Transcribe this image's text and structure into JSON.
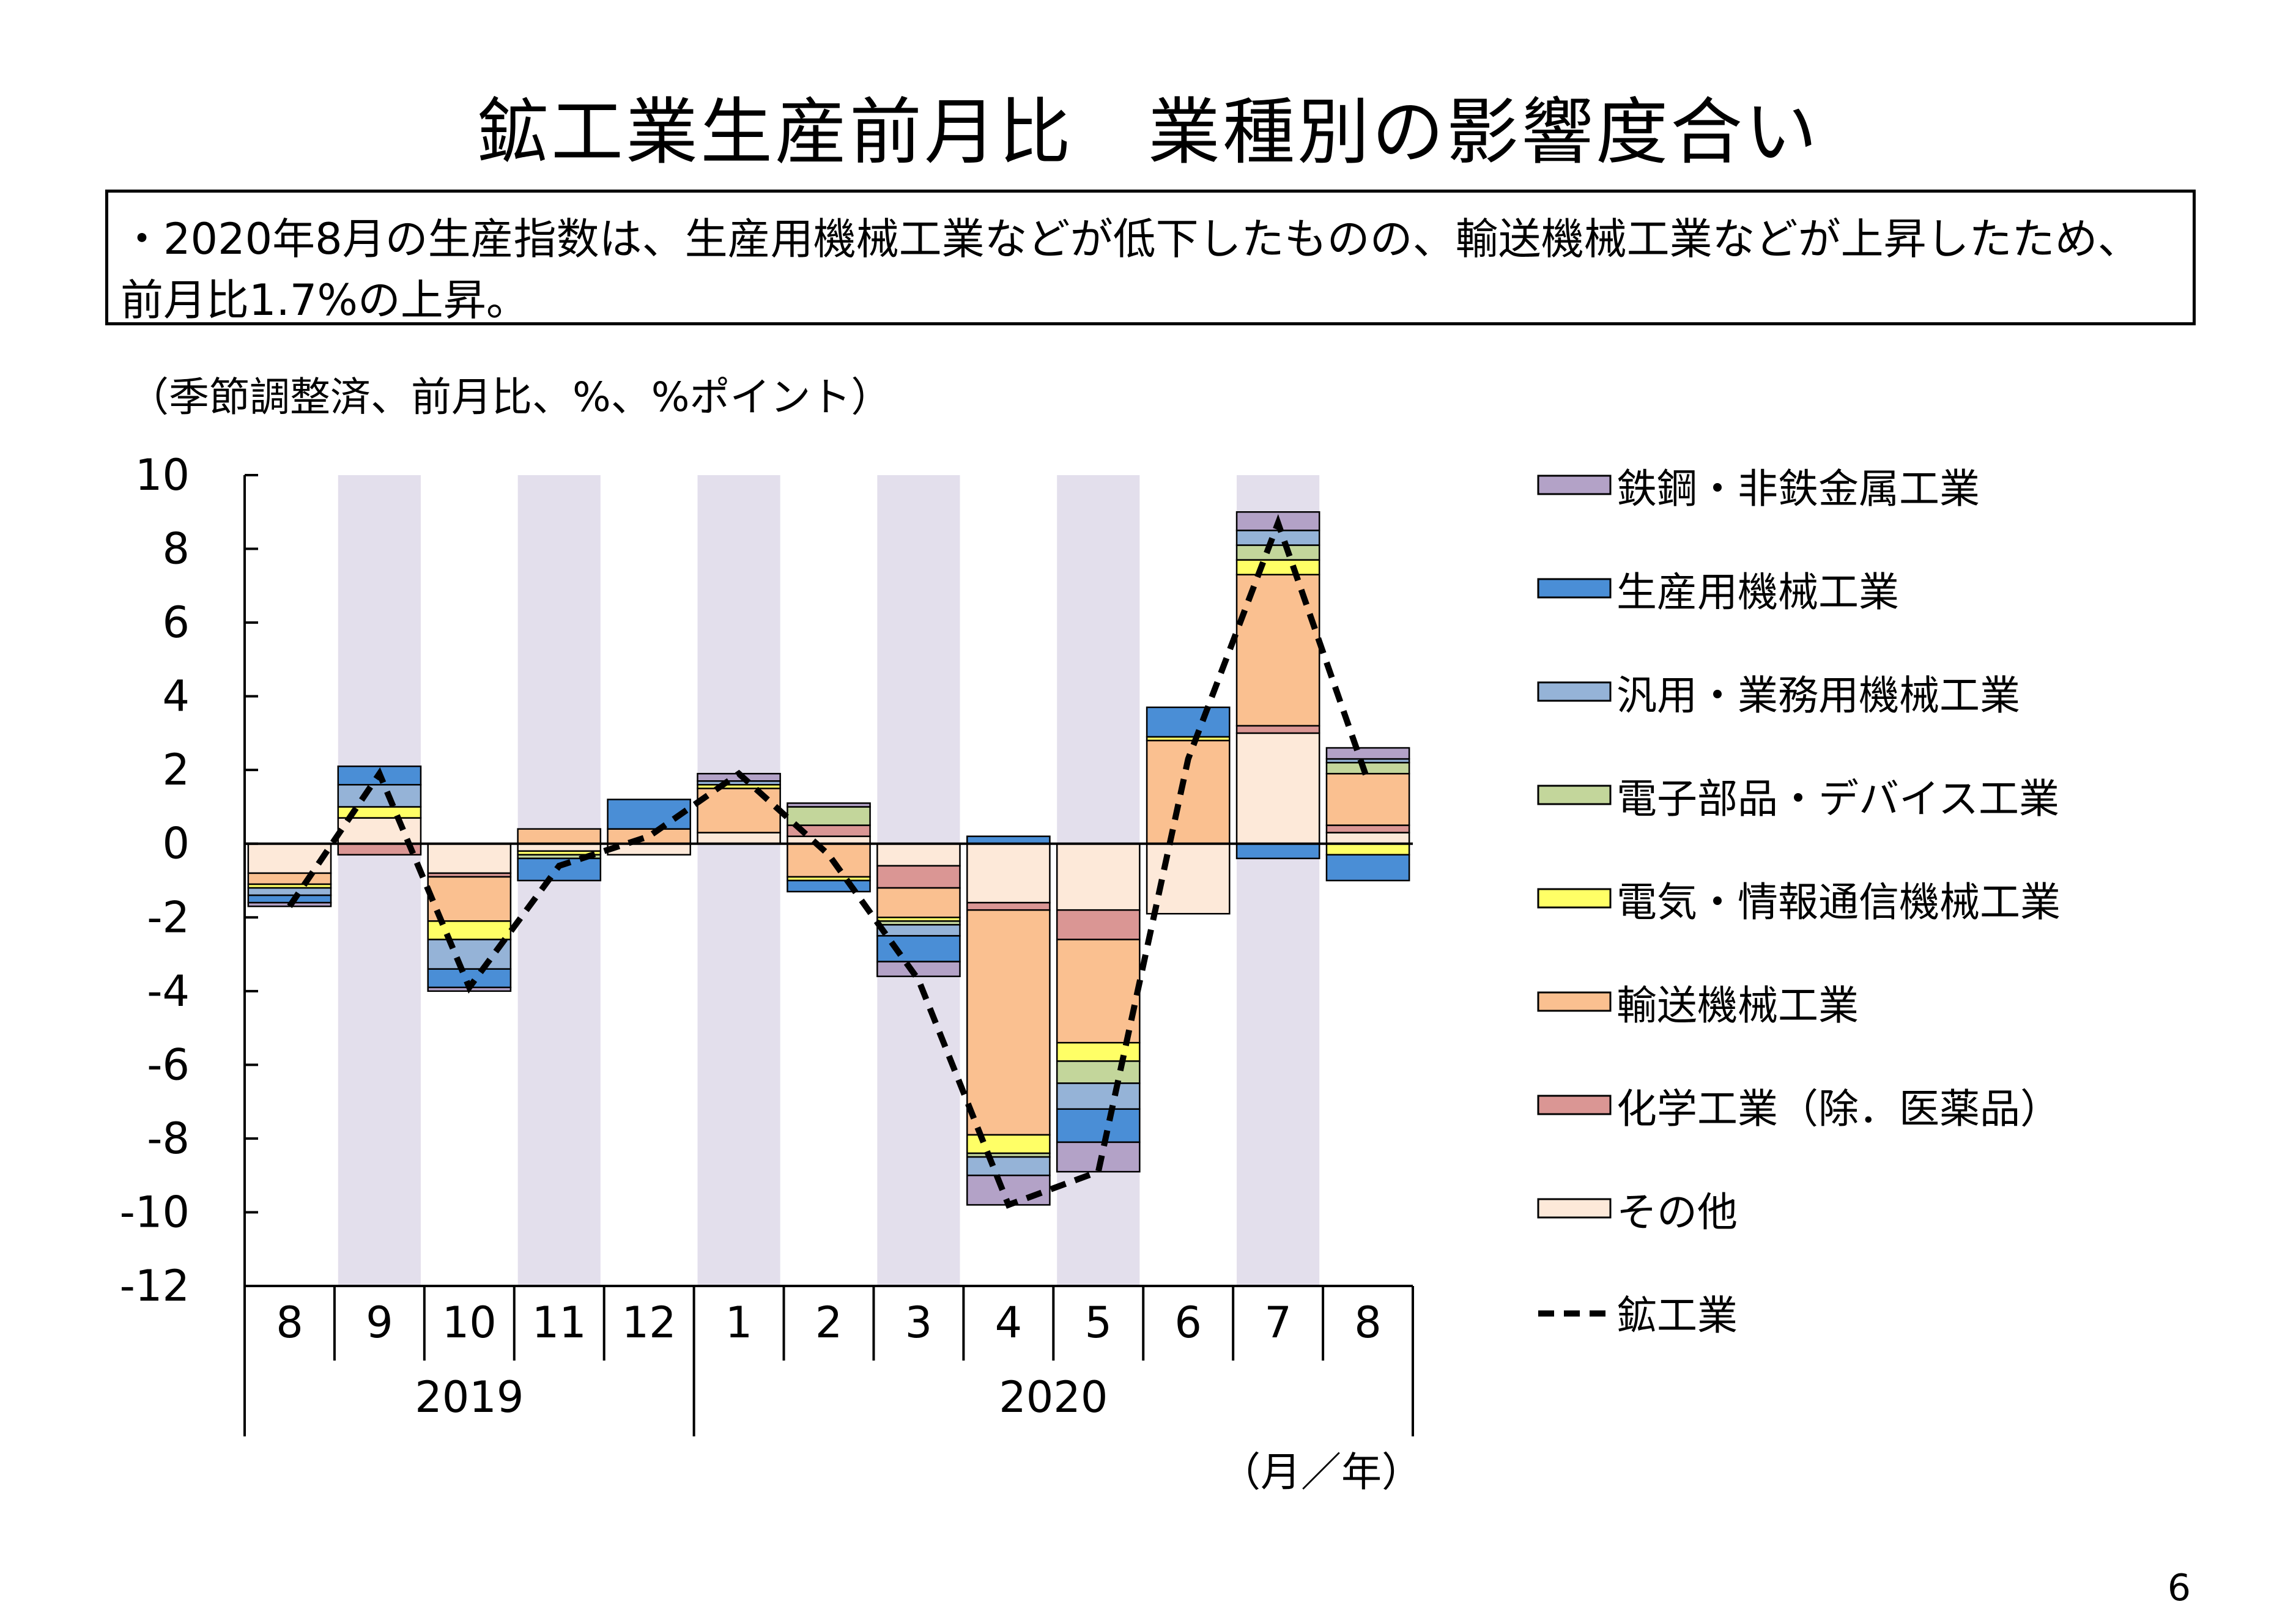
{
  "title": "鉱工業生産前月比　業種別の影響度合い",
  "summary": "・2020年8月の生産指数は、生産用機械工業などが低下したものの、輸送機械工業などが上昇したため、前月比1.7%の上昇。",
  "page_number": "6",
  "colors": {
    "shade": "#e3dfec",
    "鉄鋼・非鉄金属工業": "#b3a2c7",
    "生産用機械工業": "#4a8ed6",
    "汎用・業務用機械工業": "#95b3d7",
    "電子部品・デバイス工業": "#c3d69b",
    "電気・情報通信機械工業": "#ffff66",
    "輸送機械工業": "#fac090",
    "化学工業（除．医薬品）": "#da9694",
    "その他": "#fde9d9"
  },
  "chart_data": {
    "type": "bar",
    "stacked": true,
    "unit_label": "（季節調整済、前月比、%、%ポイント）",
    "x_unit_label": "（月／年）",
    "ylim": [
      -12,
      10
    ],
    "yticks": [
      "10",
      "8",
      "6",
      "4",
      "2",
      "0",
      "-2",
      "-4",
      "-6",
      "-8",
      "-10",
      "-12"
    ],
    "categories": [
      "8",
      "9",
      "10",
      "11",
      "12",
      "1",
      "2",
      "3",
      "4",
      "5",
      "6",
      "7",
      "8"
    ],
    "year_groups": [
      {
        "label": "2019",
        "from": 0,
        "to": 4
      },
      {
        "label": "2020",
        "from": 5,
        "to": 12
      }
    ],
    "shaded_categories": [
      1,
      3,
      5,
      7,
      9,
      11
    ],
    "series": [
      {
        "name": "その他",
        "values": [
          -0.8,
          0.7,
          -0.8,
          -0.2,
          -0.3,
          0.3,
          0.2,
          -0.6,
          -1.6,
          -1.8,
          -1.9,
          3.0,
          0.3
        ]
      },
      {
        "name": "化学工業（除．医薬品）",
        "values": [
          0.0,
          -0.3,
          -0.1,
          0.0,
          0.0,
          0.0,
          0.3,
          -0.6,
          -0.2,
          -0.8,
          0.0,
          0.2,
          0.2
        ]
      },
      {
        "name": "輸送機械工業",
        "values": [
          -0.3,
          0.0,
          -1.2,
          0.4,
          0.4,
          1.2,
          -0.9,
          -0.8,
          -6.1,
          -2.8,
          2.8,
          4.1,
          1.4
        ]
      },
      {
        "name": "電気・情報通信機械工業",
        "values": [
          -0.1,
          0.3,
          -0.5,
          -0.1,
          0.0,
          0.1,
          -0.1,
          -0.1,
          -0.5,
          -0.5,
          0.1,
          0.4,
          -0.3
        ]
      },
      {
        "name": "電子部品・デバイス工業",
        "values": [
          0.0,
          0.0,
          0.0,
          -0.1,
          0.0,
          0.0,
          0.5,
          -0.1,
          -0.1,
          -0.6,
          0.0,
          0.4,
          0.3
        ]
      },
      {
        "name": "汎用・業務用機械工業",
        "values": [
          -0.2,
          0.6,
          -0.8,
          0.0,
          0.0,
          0.1,
          0.0,
          -0.3,
          -0.5,
          -0.7,
          0.0,
          0.4,
          0.1
        ]
      },
      {
        "name": "生産用機械工業",
        "values": [
          -0.2,
          0.5,
          -0.5,
          -0.6,
          0.8,
          0.0,
          -0.3,
          -0.7,
          0.2,
          -0.9,
          0.8,
          -0.4,
          -0.7
        ]
      },
      {
        "name": "鉄鋼・非鉄金属工業",
        "values": [
          -0.1,
          0.0,
          -0.1,
          0.0,
          0.0,
          0.2,
          0.1,
          -0.4,
          -0.8,
          -0.8,
          0.0,
          0.5,
          0.3
        ]
      }
    ],
    "line": {
      "name": "鉱工業",
      "values": [
        -1.7,
        1.9,
        -3.9,
        -0.6,
        0.2,
        1.9,
        -0.3,
        -3.7,
        -9.8,
        -8.9,
        2.3,
        8.7,
        1.7
      ]
    },
    "legend": {
      "position": "right",
      "entries": [
        "鉄鋼・非鉄金属工業",
        "生産用機械工業",
        "汎用・業務用機械工業",
        "電子部品・デバイス工業",
        "電気・情報通信機械工業",
        "輸送機械工業",
        "化学工業（除．医薬品）",
        "その他",
        "鉱工業"
      ]
    }
  }
}
